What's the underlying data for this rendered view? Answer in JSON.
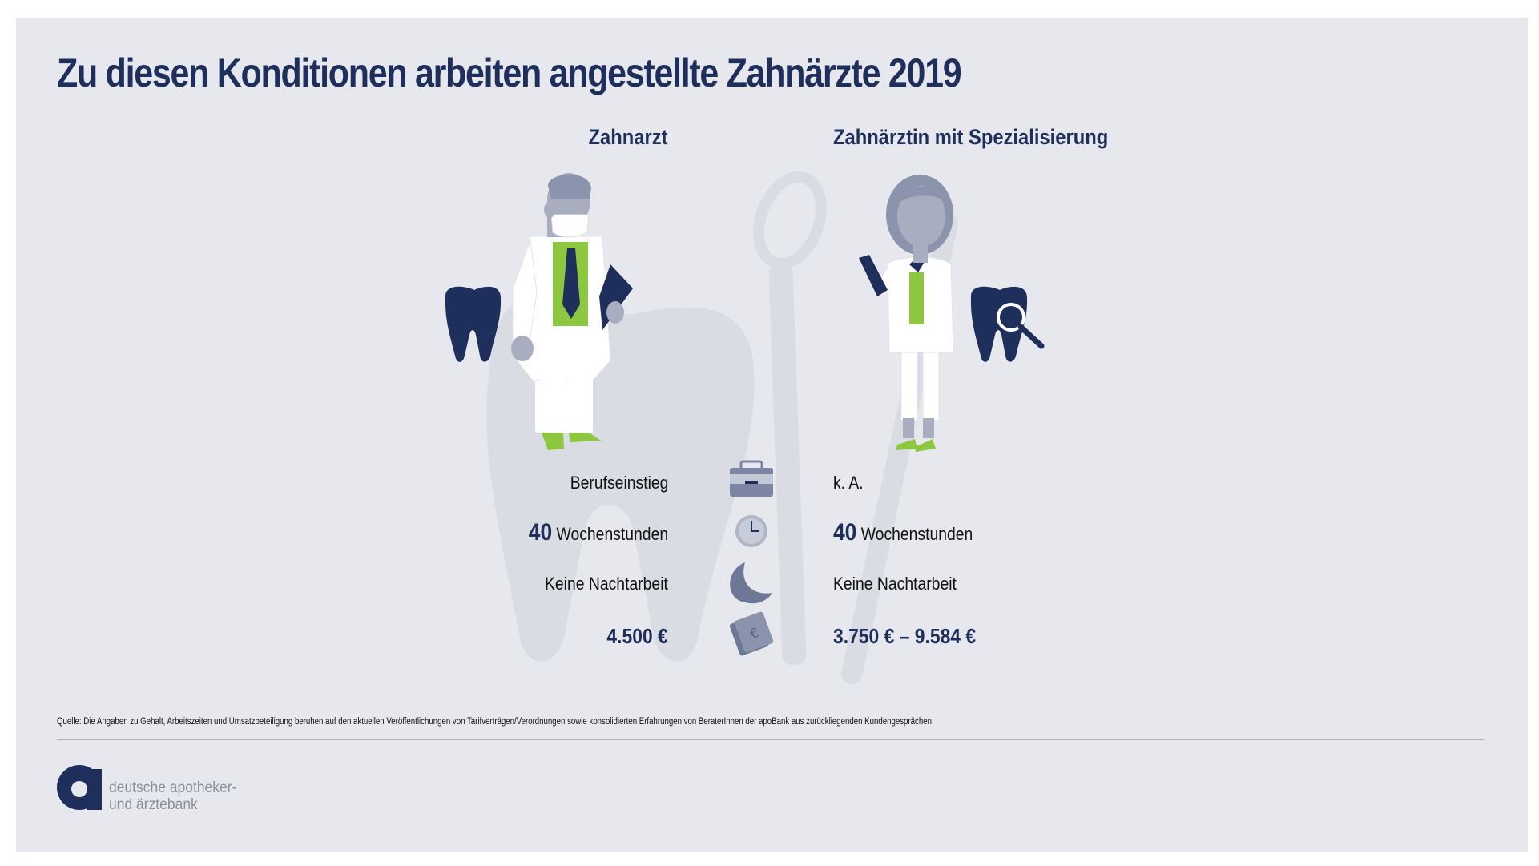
{
  "title": "Zu diesen Konditionen arbeiten angestellte Zahnärzte 2019",
  "columns": {
    "left_heading": "Zahnarzt",
    "right_heading": "Zahnärztin mit Spezialisierung"
  },
  "rows": {
    "entry": {
      "left": "Berufseinstieg",
      "right": "k. A.",
      "icon": "briefcase-icon"
    },
    "hours": {
      "left_number": "40",
      "left_unit": "Wochenstunden",
      "right_number": "40",
      "right_unit": "Wochenstunden",
      "icon": "clock-icon"
    },
    "night": {
      "left": "Keine Nachtarbeit",
      "right": "Keine Nachtarbeit",
      "icon": "moon-icon"
    },
    "salary": {
      "left": "4.500 €",
      "right": "3.750 € – 9.584 €",
      "icon": "money-icon"
    }
  },
  "source": "Quelle: Die Angaben zu Gehalt, Arbeitszeiten und Umsatzbeteiligung beruhen auf den aktuellen Veröffentlichungen von Tarifverträgen/Verordnungen sowie konsolidierten Erfahrungen von BeraterInnen der apoBank aus zurückliegenden Kundengesprächen.",
  "brand": {
    "name": "deutsche apotheker-\nund ärztebank"
  },
  "colors": {
    "navy": "#1f2f5c",
    "green": "#8dc63f",
    "grey_icon": "#7c86a3",
    "background": "#e6e8ed"
  }
}
